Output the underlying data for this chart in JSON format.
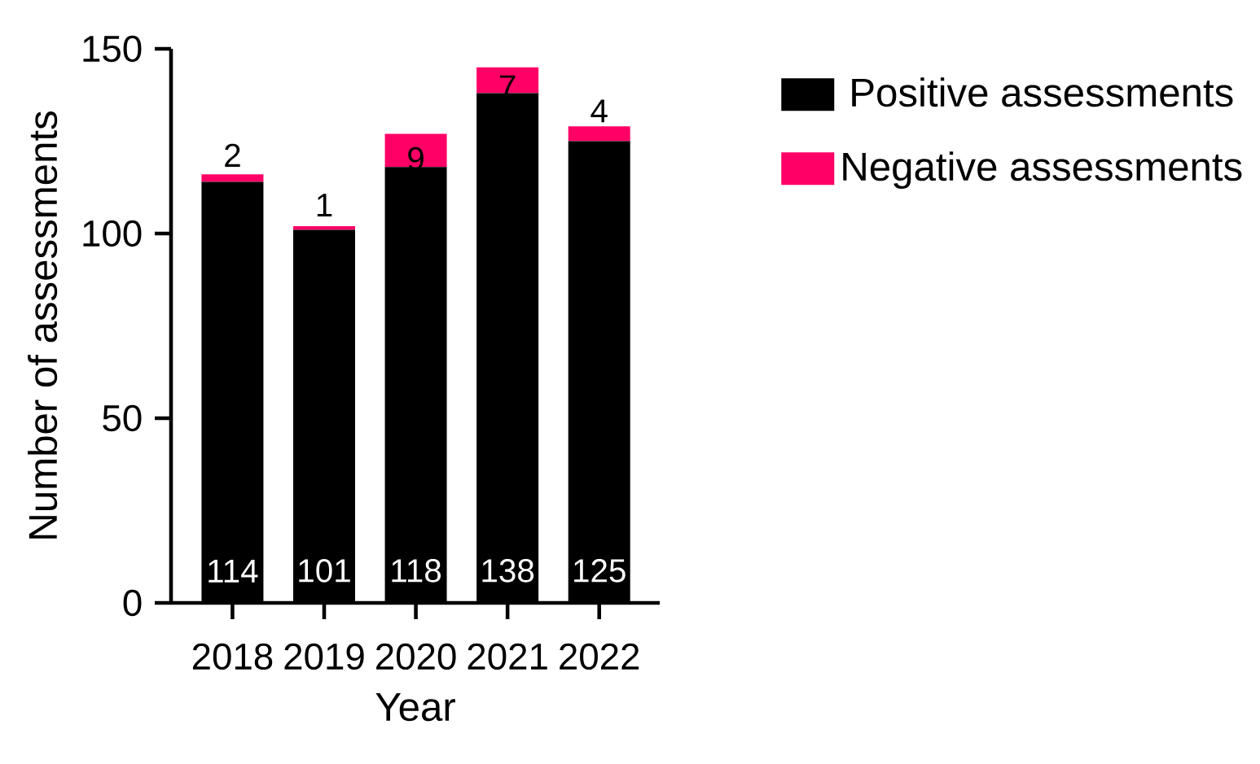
{
  "chart_data": {
    "type": "bar",
    "stacked": true,
    "categories": [
      "2018",
      "2019",
      "2020",
      "2021",
      "2022"
    ],
    "series": [
      {
        "name": "Positive assessments",
        "color": "#000000",
        "values": [
          114,
          101,
          118,
          138,
          125
        ]
      },
      {
        "name": "Negative assessments",
        "color": "#ff0066",
        "values": [
          2,
          1,
          9,
          7,
          4
        ]
      }
    ],
    "xlabel": "Year",
    "ylabel": "Number of assessments",
    "ylim": [
      0,
      150
    ],
    "yticks": [
      0,
      50,
      100,
      150
    ],
    "data_labels": true,
    "legend": "top right",
    "grid": false
  }
}
